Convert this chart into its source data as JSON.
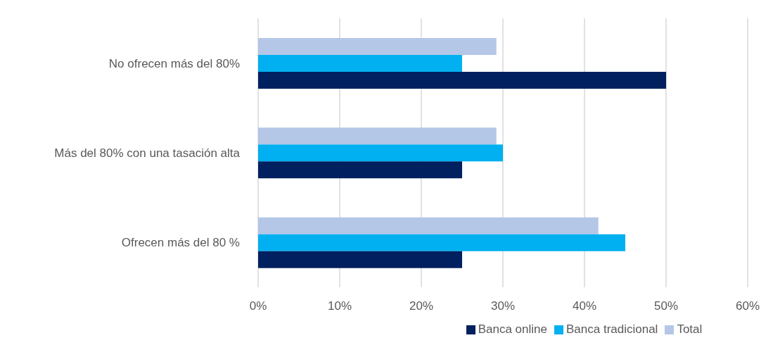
{
  "chart_data": {
    "type": "bar",
    "orientation": "horizontal",
    "categories": [
      "No ofrecen más del 80%",
      "Más del 80% con una tasación alta",
      "Ofrecen más del 80 %"
    ],
    "series": [
      {
        "name": "Total",
        "color": "#b4c7e7",
        "values": [
          29.2,
          29.2,
          41.7
        ]
      },
      {
        "name": "Banca tradicional",
        "color": "#00b0f0",
        "values": [
          25,
          30,
          45
        ]
      },
      {
        "name": "Banca online",
        "color": "#002060",
        "values": [
          50,
          25,
          25
        ]
      }
    ],
    "xlim": [
      0,
      60
    ],
    "xticks": [
      {
        "value": 0,
        "label": "0%"
      },
      {
        "value": 10,
        "label": "10%"
      },
      {
        "value": 20,
        "label": "20%"
      },
      {
        "value": 30,
        "label": "30%"
      },
      {
        "value": 40,
        "label": "40%"
      },
      {
        "value": 50,
        "label": "50%"
      },
      {
        "value": 60,
        "label": "60%"
      }
    ],
    "grid": "x",
    "legend": "bottom"
  }
}
